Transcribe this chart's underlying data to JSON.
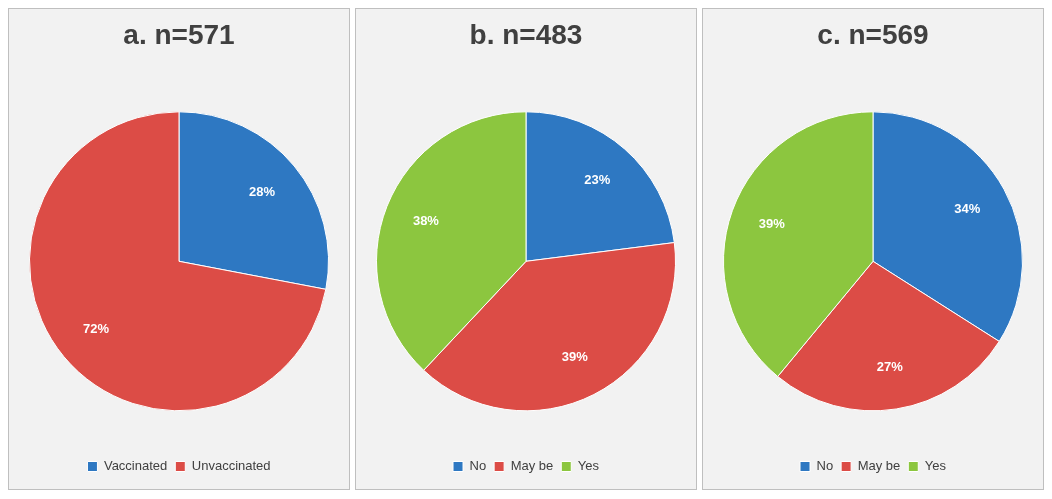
{
  "chart_data": [
    {
      "type": "pie",
      "title": "a. n=571",
      "categories": [
        "Vaccinated",
        "Unvaccinated"
      ],
      "values": [
        28,
        72
      ],
      "colors": [
        "#2e78c2",
        "#dc4c46"
      ],
      "value_labels": [
        "28%",
        "72%"
      ],
      "legend": "bottom"
    },
    {
      "type": "pie",
      "title": "b. n=483",
      "categories": [
        "No",
        "May be",
        "Yes"
      ],
      "values": [
        23,
        39,
        38
      ],
      "colors": [
        "#2e78c2",
        "#dc4c46",
        "#8cc63f"
      ],
      "value_labels": [
        "23%",
        "39%",
        "38%"
      ],
      "legend": "bottom"
    },
    {
      "type": "pie",
      "title": "c. n=569",
      "categories": [
        "No",
        "May be",
        "Yes"
      ],
      "values": [
        34,
        27,
        39
      ],
      "colors": [
        "#2e78c2",
        "#dc4c46",
        "#8cc63f"
      ],
      "value_labels": [
        "34%",
        "27%",
        "39%"
      ],
      "legend": "bottom"
    }
  ]
}
